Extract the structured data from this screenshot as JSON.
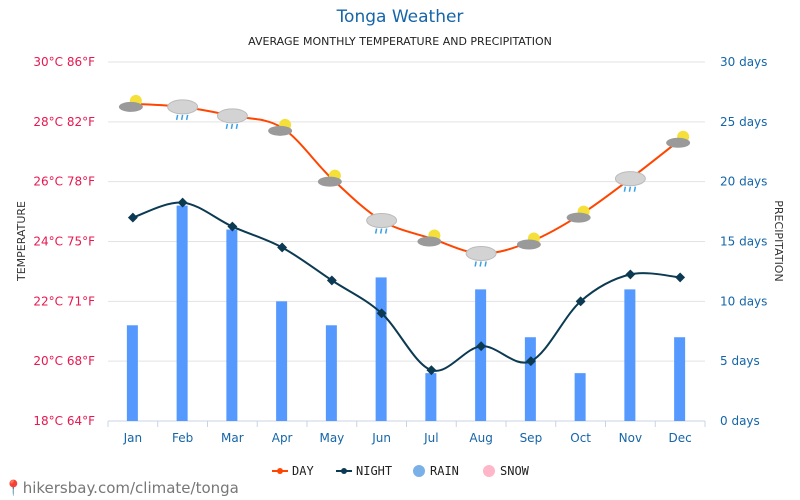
{
  "chart_data": {
    "type": "line+bar",
    "title": "Tonga Weather",
    "subtitle": "AVERAGE MONTHLY TEMPERATURE AND PRECIPITATION",
    "categories": [
      "Jan",
      "Feb",
      "Mar",
      "Apr",
      "May",
      "Jun",
      "Jul",
      "Aug",
      "Sep",
      "Oct",
      "Nov",
      "Dec"
    ],
    "ylabel_left": "TEMPERATURE",
    "ylabel_right": "PRECIPITATION",
    "ylim_left": [
      18,
      30
    ],
    "ylim_right": [
      0,
      30
    ],
    "left_ticks": [
      "18°C 64°F",
      "20°C 68°F",
      "22°C 71°F",
      "24°C 75°F",
      "26°C 78°F",
      "28°C 82°F",
      "30°C 86°F"
    ],
    "right_ticks": [
      "0 days",
      "5 days",
      "10 days",
      "15 days",
      "20 days",
      "25 days",
      "30 days"
    ],
    "grid": true,
    "legend_placement": "bottom",
    "series": [
      {
        "name": "DAY",
        "type": "line",
        "unit": "°C",
        "color": "#ff4500",
        "values": [
          28.6,
          28.5,
          28.2,
          27.8,
          26.1,
          24.7,
          24.1,
          23.6,
          24.0,
          24.9,
          26.1,
          27.4
        ]
      },
      {
        "name": "NIGHT",
        "type": "line",
        "unit": "°C",
        "color": "#0b3a52",
        "values": [
          24.8,
          25.3,
          24.5,
          23.8,
          22.7,
          21.6,
          19.7,
          20.5,
          20.0,
          22.0,
          22.9,
          22.8
        ]
      },
      {
        "name": "RAIN",
        "type": "bar",
        "unit": "days",
        "color": "#5599ff",
        "values": [
          8,
          18,
          16,
          10,
          8,
          12,
          4,
          11,
          7,
          4,
          11,
          7
        ]
      },
      {
        "name": "SNOW",
        "type": "bar",
        "unit": "days",
        "color": "#ffb6c8",
        "values": [
          0,
          0,
          0,
          0,
          0,
          0,
          0,
          0,
          0,
          0,
          0,
          0
        ]
      }
    ],
    "weather_icons": [
      "partly-cloudy",
      "rain",
      "rain",
      "partly-cloudy",
      "partly-cloudy",
      "rain",
      "partly-cloudy",
      "rain",
      "partly-cloudy",
      "partly-cloudy",
      "rain",
      "partly-cloudy"
    ]
  },
  "footer": {
    "text": "hikersbay.com/climate/tonga",
    "icon": "location-pin-icon"
  }
}
